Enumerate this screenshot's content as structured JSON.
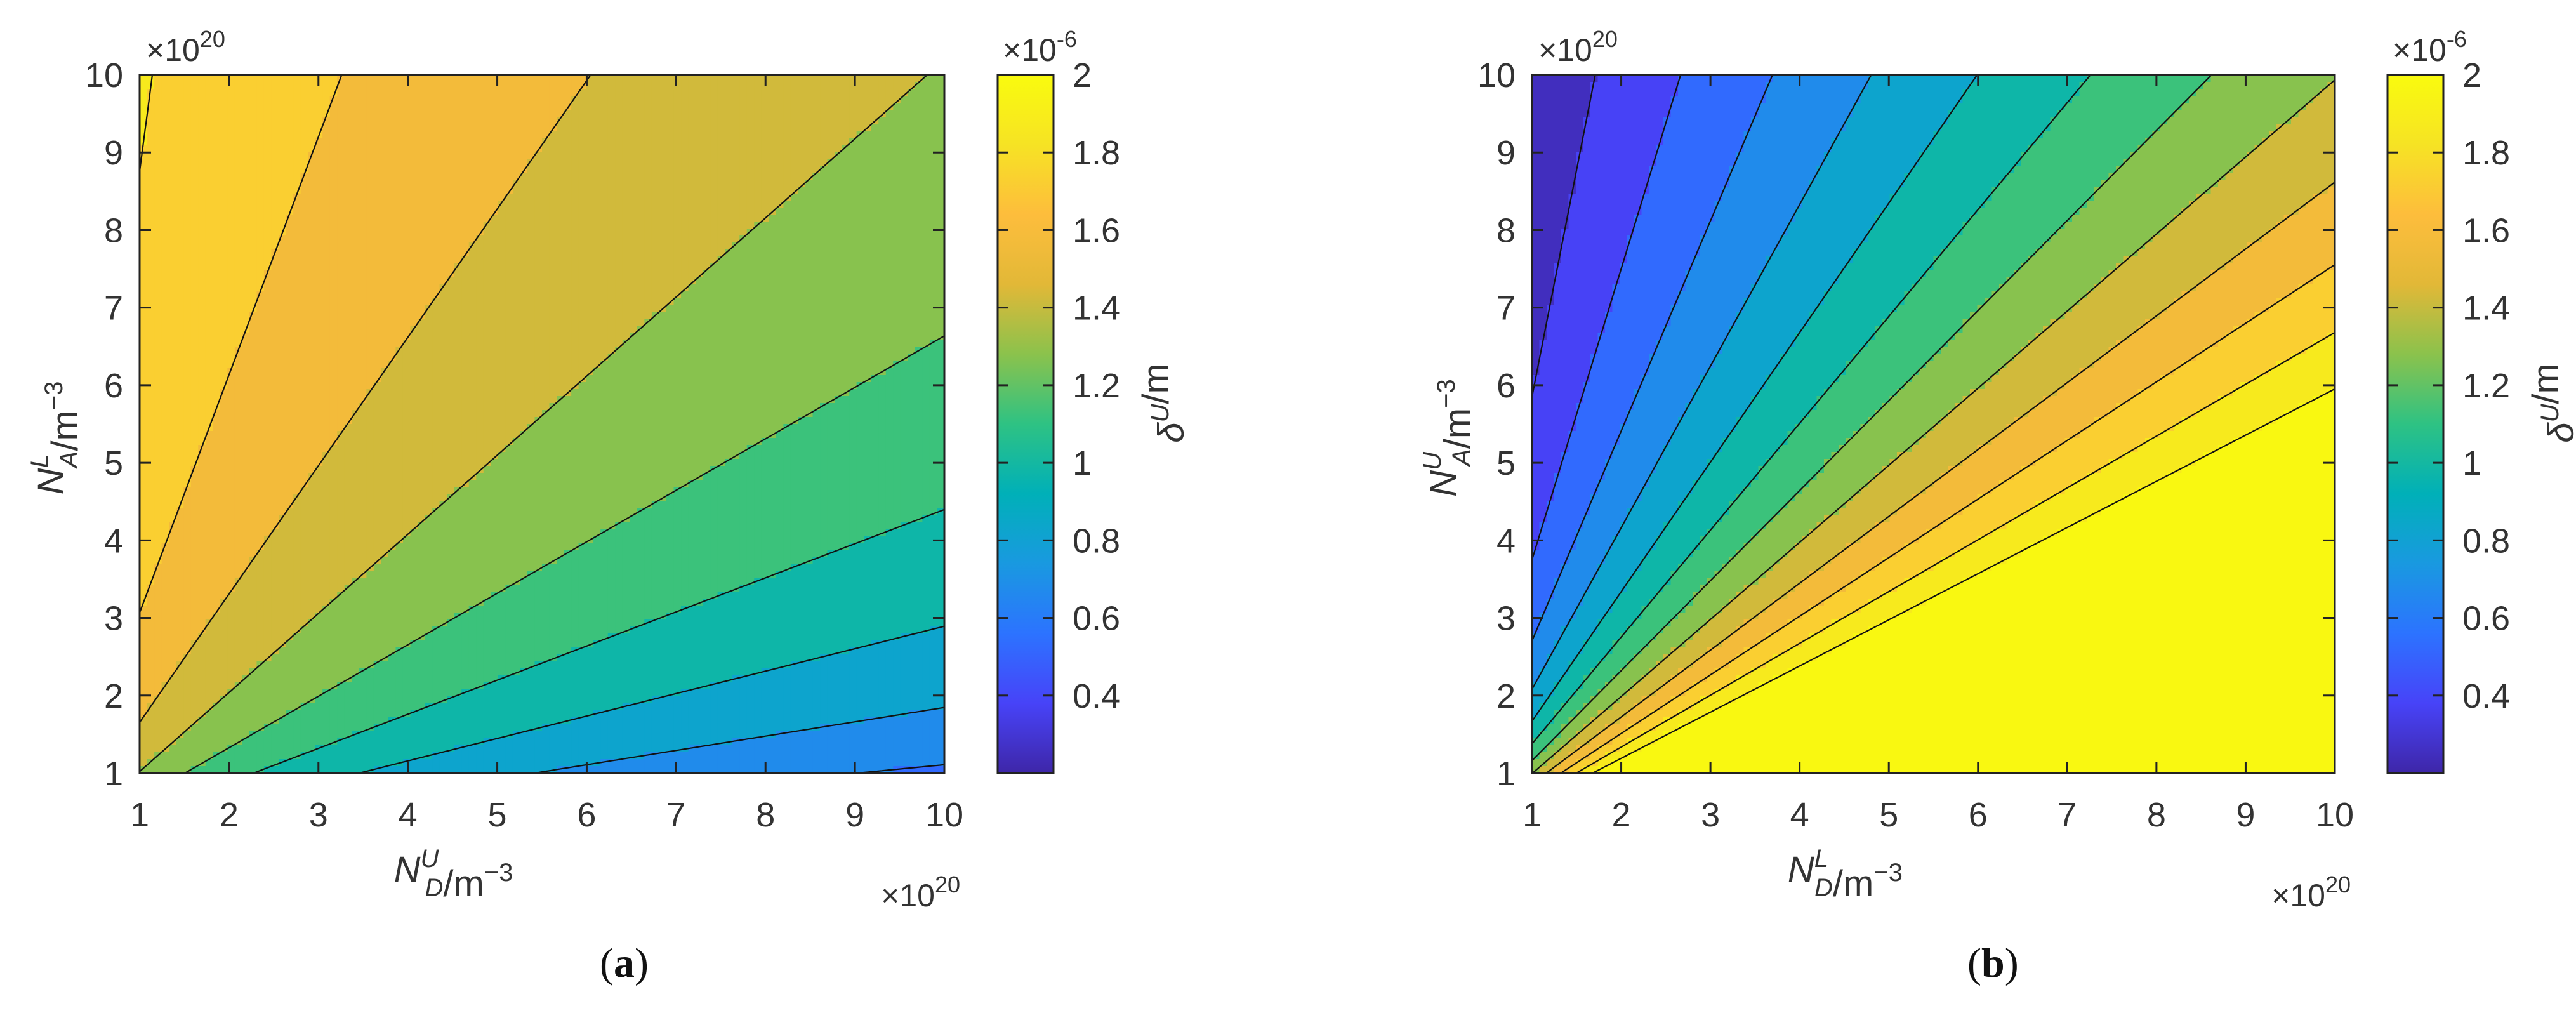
{
  "chart_data": [
    {
      "id": "a",
      "type": "contour",
      "caption": "a",
      "x": {
        "label_base": "N",
        "label_sub": "D",
        "label_sup": "U",
        "label_unit": "/m",
        "label_unit_exp": "−3",
        "lim": [
          1,
          10
        ],
        "ticks": [
          "1",
          "2",
          "3",
          "4",
          "5",
          "6",
          "7",
          "8",
          "9",
          "10"
        ],
        "multiplier_base": "×10",
        "multiplier_exp": "20"
      },
      "y": {
        "label_base": "N",
        "label_sub": "A",
        "label_sup": "L",
        "label_unit": "/m",
        "label_unit_exp": "−3",
        "lim": [
          1,
          10
        ],
        "ticks": [
          "1",
          "2",
          "3",
          "4",
          "5",
          "6",
          "7",
          "8",
          "9",
          "10"
        ],
        "multiplier_base": "×10",
        "multiplier_exp": "20"
      },
      "colorbar": {
        "label_base": "δ",
        "label_sup": "U",
        "label_unit": "/m",
        "ticks": [
          "2",
          "1.8",
          "1.6",
          "1.4",
          "1.2",
          "1",
          "0.8",
          "0.6",
          "0.4"
        ],
        "range": [
          0.2,
          2.0
        ],
        "multiplier_base": "×10",
        "multiplier_exp": "-6"
      },
      "contour_levels": [
        0.3,
        0.45,
        0.6,
        0.75,
        0.9,
        1.05,
        1.2,
        1.35,
        1.5,
        1.65,
        1.8,
        1.95
      ],
      "model": "delta = 1.9e-6 * sqrt(NA/ND) / sqrt(1 + NA/ND)  (estimated field, x = N_D^U, y = N_A^L)"
    },
    {
      "id": "b",
      "type": "contour",
      "caption": "b",
      "x": {
        "label_base": "N",
        "label_sub": "D",
        "label_sup": "L",
        "label_unit": "/m",
        "label_unit_exp": "−3",
        "lim": [
          1,
          10
        ],
        "ticks": [
          "1",
          "2",
          "3",
          "4",
          "5",
          "6",
          "7",
          "8",
          "9",
          "10"
        ],
        "multiplier_base": "×10",
        "multiplier_exp": "20"
      },
      "y": {
        "label_base": "N",
        "label_sub": "A",
        "label_sup": "U",
        "label_unit": "/m",
        "label_unit_exp": "−3",
        "lim": [
          1,
          10
        ],
        "ticks": [
          "1",
          "2",
          "3",
          "4",
          "5",
          "6",
          "7",
          "8",
          "9",
          "10"
        ],
        "multiplier_base": "×10",
        "multiplier_exp": "20"
      },
      "colorbar": {
        "label_base": "δ",
        "label_sup": "U",
        "label_unit": "/m",
        "ticks": [
          "2",
          "1.8",
          "1.6",
          "1.4",
          "1.2",
          "1",
          "0.8",
          "0.6",
          "0.4"
        ],
        "range": [
          0.2,
          2.0
        ],
        "multiplier_base": "×10",
        "multiplier_exp": "-6"
      },
      "contour_levels": [
        0.3,
        0.45,
        0.6,
        0.75,
        0.9,
        1.05,
        1.2,
        1.35,
        1.5,
        1.65,
        1.8,
        1.95
      ],
      "model": "delta = 1.9e-6 * sqrt(ND/NA) / sqrt(1 + NA/ND)  (estimated field, x = N_D^L, y = N_A^U)"
    }
  ],
  "colormap": [
    "#3e26a8",
    "#4743f8",
    "#2c73ff",
    "#1999e0",
    "#00b0b8",
    "#2ec283",
    "#8bc24c",
    "#e2b837",
    "#fdbd3c",
    "#f6e324",
    "#f9fb0e"
  ]
}
